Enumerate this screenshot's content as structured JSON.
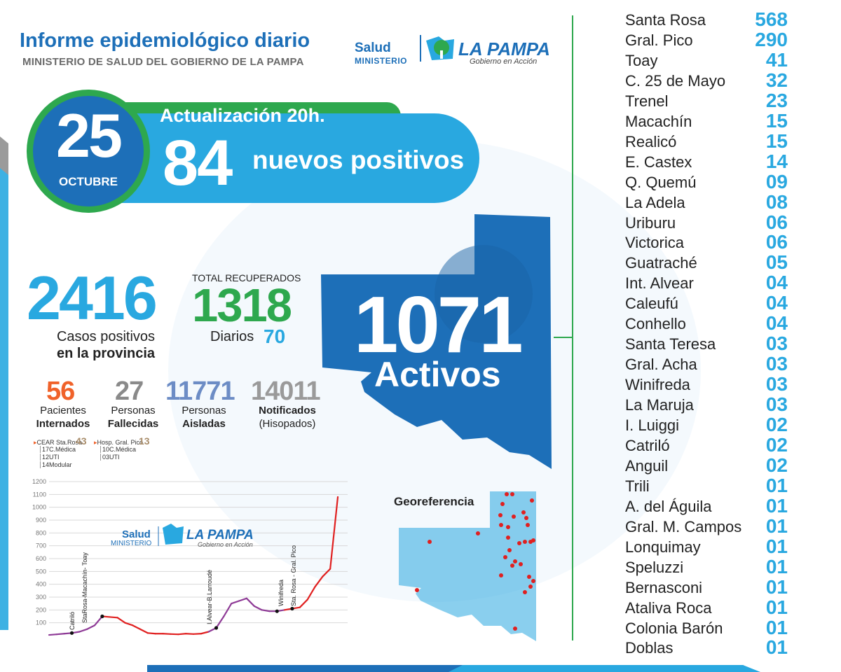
{
  "header": {
    "title": "Informe epidemiológico diario",
    "subtitle": "MINISTERIO DE SALUD DEL GOBIERNO DE LA PAMPA"
  },
  "logo": {
    "salud": "Salud",
    "ministerio": "MINISTERIO",
    "lapampa": "LA PAMPA",
    "tagline": "Gobierno en Acción"
  },
  "date": {
    "day": "25",
    "month": "OCTUBRE"
  },
  "update": "Actualización 20h.",
  "new_positives": {
    "count": "84",
    "label": "nuevos positivos"
  },
  "totals": {
    "positive": "2416",
    "positive_label_1": "Casos positivos",
    "positive_label_2": "en la provincia",
    "recovered_label": "TOTAL RECUPERADOS",
    "recovered": "1318",
    "daily_label": "Diarios",
    "daily": "70",
    "active": "1071",
    "active_label": "Activos"
  },
  "stats": [
    {
      "value": "56",
      "line1": "Pacientes",
      "line2": "Internados"
    },
    {
      "value": "27",
      "line1": "Personas",
      "line2": "Fallecidas"
    },
    {
      "value": "11771",
      "line1": "Personas",
      "line2": "Aisladas"
    },
    {
      "value": "14011",
      "line1": "Notificados",
      "line2": "(Hisopados)"
    }
  ],
  "hospitals": [
    {
      "name": "CEAR Sta.Rosa",
      "total": "43",
      "details": [
        "17C.Médica",
        "12UTI",
        "14Modular"
      ]
    },
    {
      "name": "Hosp. Gral. Pico",
      "total": "13",
      "details": [
        "10C.Médica",
        "03UTI"
      ]
    }
  ],
  "georeferencia": "Georeferencia",
  "colors": {
    "blue": "#1d6fb8",
    "light_blue": "#29a8e0",
    "green": "#2ea84e",
    "orange": "#f0622a",
    "chart_red": "#e02020",
    "chart_purple": "#8e3a96"
  },
  "localities": [
    {
      "name": "Santa Rosa",
      "value": "568"
    },
    {
      "name": "Gral. Pico",
      "value": "290"
    },
    {
      "name": "Toay",
      "value": "41"
    },
    {
      "name": "C. 25 de Mayo",
      "value": "32"
    },
    {
      "name": "Trenel",
      "value": "23"
    },
    {
      "name": "Macachín",
      "value": "15"
    },
    {
      "name": "Realicó",
      "value": "15"
    },
    {
      "name": "E. Castex",
      "value": "14"
    },
    {
      "name": "Q. Quemú",
      "value": "09"
    },
    {
      "name": "La Adela",
      "value": "08"
    },
    {
      "name": "Uriburu",
      "value": "06"
    },
    {
      "name": "Victorica",
      "value": "06"
    },
    {
      "name": "Guatraché",
      "value": "05"
    },
    {
      "name": "Int. Alvear",
      "value": "04"
    },
    {
      "name": "Caleufú",
      "value": "04"
    },
    {
      "name": "Conhello",
      "value": "04"
    },
    {
      "name": "Santa Teresa",
      "value": "03"
    },
    {
      "name": "Gral. Acha",
      "value": "03"
    },
    {
      "name": "Winifreda",
      "value": "03"
    },
    {
      "name": "La Maruja",
      "value": "03"
    },
    {
      "name": "I. Luiggi",
      "value": "02"
    },
    {
      "name": "Catriló",
      "value": "02"
    },
    {
      "name": "Anguil",
      "value": "02"
    },
    {
      "name": "Trili",
      "value": "01"
    },
    {
      "name": "A. del Águila",
      "value": "01"
    },
    {
      "name": "Gral. M. Campos",
      "value": "01"
    },
    {
      "name": "Lonquimay",
      "value": "01"
    },
    {
      "name": "Speluzzi",
      "value": "01"
    },
    {
      "name": "Bernasconi",
      "value": "01"
    },
    {
      "name": "Ataliva Roca",
      "value": "01"
    },
    {
      "name": "Colonia Barón",
      "value": "01"
    },
    {
      "name": "Doblas",
      "value": "01"
    }
  ],
  "chart_data": {
    "type": "line",
    "title": "",
    "ylim": [
      0,
      1200
    ],
    "yticks": [
      100,
      200,
      300,
      400,
      500,
      600,
      700,
      800,
      900,
      1000,
      1100,
      1200
    ],
    "grid": true,
    "series": [
      {
        "values": [
          5,
          10,
          15,
          20,
          30,
          50,
          80,
          150,
          145,
          140,
          100,
          80,
          50,
          20,
          15,
          15,
          12,
          10,
          15,
          12,
          15,
          30,
          60,
          150,
          250,
          270,
          290,
          230,
          200,
          190,
          190,
          200,
          210,
          220,
          280,
          380,
          460,
          520,
          1080
        ]
      }
    ],
    "annotations": [
      "Catriló",
      "StaRosa-Macachín- Toay",
      "I.Alvear-B.Larroudé",
      "Winifreda",
      "Sta. Rosa - Gral. Pico"
    ]
  }
}
